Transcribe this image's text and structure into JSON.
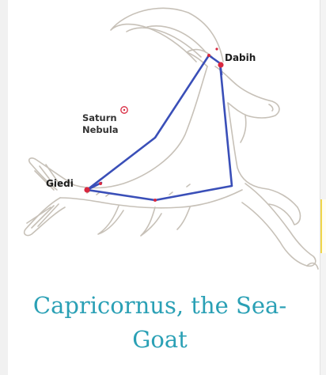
{
  "constellation": {
    "stars": {
      "dabih": "Dabih",
      "giedi": "Giedi"
    },
    "nebula": {
      "line1": "Saturn",
      "line2": "Nebula"
    }
  },
  "caption": {
    "line1": "Capricornus, the Sea-",
    "line2": "Goat"
  },
  "colors": {
    "caption": "#2aa0b5",
    "constellation_line": "#3a4fb8",
    "star": "#d8283f",
    "outline": "#c9c3bb"
  }
}
